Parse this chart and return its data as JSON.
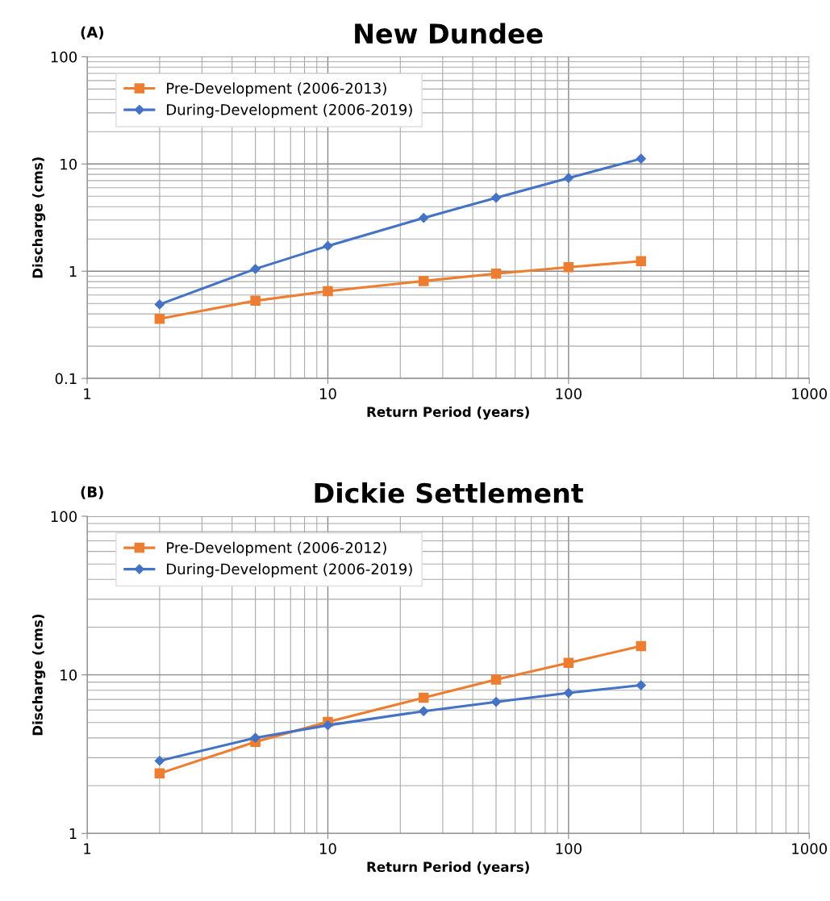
{
  "chart_data": [
    {
      "type": "line",
      "title": "New Dundee",
      "xlabel": "Return Period (years)",
      "ylabel": "Discharge (cms)",
      "annotations": [
        "(A)"
      ],
      "log": "xy",
      "grid": true,
      "legend": "top left",
      "line_style": "solid",
      "x": [
        2,
        5,
        10,
        25,
        50,
        100,
        200
      ],
      "xlim": [
        1,
        1000
      ],
      "xticks": [
        1,
        10,
        100,
        1000
      ],
      "ylim": [
        0.1,
        100
      ],
      "yticks": [
        0.1,
        1,
        10,
        100
      ],
      "series": [
        {
          "name": "Pre-Development (2006-2013)",
          "color": "#ed7d31",
          "marker": "square",
          "values": [
            0.36,
            0.53,
            0.65,
            0.81,
            0.95,
            1.09,
            1.24
          ]
        },
        {
          "name": "During-Development (2006-2019)",
          "color": "#4472c4",
          "marker": "diamond",
          "values": [
            0.49,
            1.05,
            1.72,
            3.14,
            4.84,
            7.4,
            11.2
          ]
        }
      ]
    },
    {
      "type": "line",
      "title": "Dickie Settlement",
      "xlabel": "Return Period (years)",
      "ylabel": "Discharge (cms)",
      "annotations": [
        "(B)"
      ],
      "log": "xy",
      "grid": true,
      "legend": "top left",
      "line_style": "solid",
      "x": [
        2,
        5,
        10,
        25,
        50,
        100,
        200
      ],
      "xlim": [
        1,
        1000
      ],
      "xticks": [
        1,
        10,
        100,
        1000
      ],
      "ylim": [
        1,
        100
      ],
      "yticks": [
        1,
        10,
        100
      ],
      "series": [
        {
          "name": "Pre-Development (2006-2012)",
          "color": "#ed7d31",
          "marker": "square",
          "values": [
            2.39,
            3.78,
            5.05,
            7.17,
            9.33,
            11.9,
            15.2
          ]
        },
        {
          "name": "During-Development (2006-2019)",
          "color": "#4472c4",
          "marker": "diamond",
          "values": [
            2.87,
            4.01,
            4.81,
            5.9,
            6.75,
            7.69,
            8.6
          ]
        }
      ]
    }
  ]
}
